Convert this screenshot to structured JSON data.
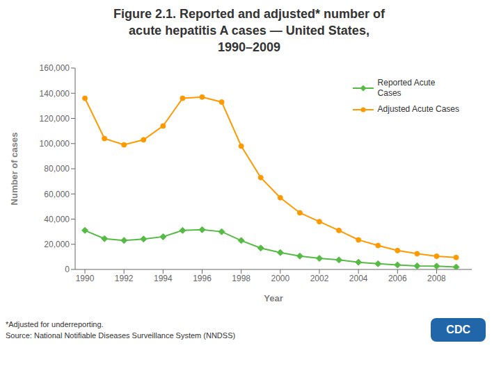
{
  "chart_data": {
    "type": "line",
    "title": "Figure 2.1. Reported and adjusted* number of\nacute hepatitis A cases — United States,\n1990–2009",
    "xlabel": "Year",
    "ylabel": "Number of cases",
    "x": [
      1990,
      1991,
      1992,
      1993,
      1994,
      1995,
      1996,
      1997,
      1998,
      1999,
      2000,
      2001,
      2002,
      2003,
      2004,
      2005,
      2006,
      2007,
      2008,
      2009
    ],
    "series": [
      {
        "name": "Reported Acute\nCases",
        "color": "#55bb44",
        "marker": "diamond",
        "values": [
          31000,
          24400,
          23100,
          24200,
          26000,
          31000,
          31600,
          30000,
          23000,
          17000,
          13400,
          10600,
          8800,
          7600,
          5700,
          4500,
          3600,
          2800,
          2600,
          1900
        ]
      },
      {
        "name": "Adjusted Acute Cases",
        "color": "#ff9900",
        "marker": "circle",
        "values": [
          136000,
          104000,
          99000,
          103000,
          114000,
          136000,
          137000,
          133000,
          98000,
          73000,
          57000,
          45000,
          38000,
          31000,
          23500,
          19000,
          15000,
          12500,
          10500,
          9500
        ]
      }
    ],
    "xlim": [
      1989.5,
      2009.8
    ],
    "xticks": [
      1990,
      1992,
      1994,
      1996,
      1998,
      2000,
      2002,
      2004,
      2006,
      2008
    ],
    "ylim": [
      0,
      160000
    ],
    "yticks": [
      0,
      {
        "value": 20000,
        "label": "20,000"
      },
      {
        "value": 40000,
        "label": "40,000"
      },
      {
        "value": 60000,
        "label": "60,000"
      },
      {
        "value": 80000,
        "label": "80,000"
      },
      {
        "value": 100000,
        "label": "100,000"
      },
      {
        "value": 120000,
        "label": "120,000"
      },
      {
        "value": 140000,
        "label": "140,000"
      },
      {
        "value": 160000,
        "label": "160,000"
      }
    ],
    "grid": false,
    "legend": "upper right",
    "annotations": [
      "*Adjusted for underreporting.",
      "Source: National Notifiable Diseases Surveillance System (NNDSS)",
      "CDC"
    ]
  }
}
